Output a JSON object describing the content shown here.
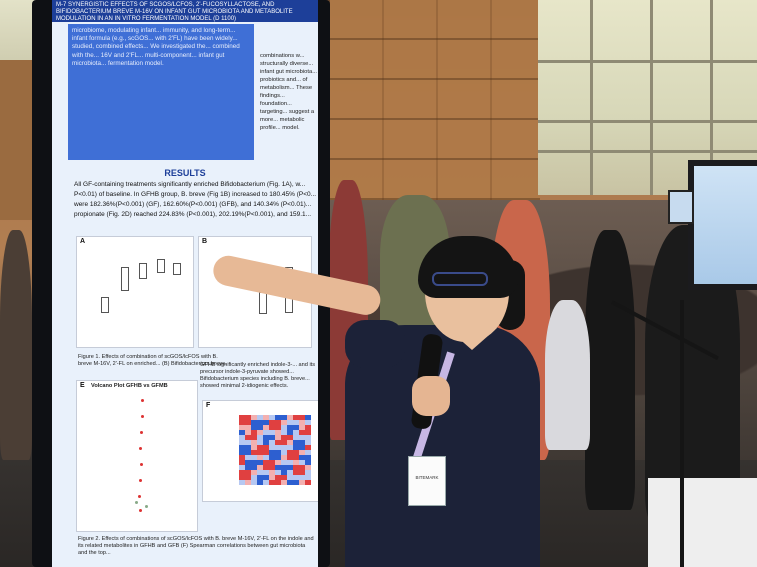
{
  "poster": {
    "header": "M-7 SYNERGISTIC EFFECTS OF SCGOS/LCFOS, 2'-FUCOSYLLACTOSE, AND BIFIDOBACTERIUM BREVE M-16V ON INFANT GUT MICROBIOTA AND METABOLITE MODULATION IN AN IN VITRO FERMENTATION MODEL",
    "code": "(D 1100)",
    "abstract_text": "microbiome, modulating infant... immunity, and long-term... infant formula (e.g., scGOS... with 2'FL) have been widely... studied, combined effects... We investigated the... combined with the... 16V and 2'FL... multi-component... infant gut microbiota... fermentation model.",
    "aside_text": "combinations w... structurally diverse... infant gut microbiota... probiotics and... of metabolism... These findings... foundation... targeting... suggest a more... metabolic profile... model.",
    "results_title": "RESULTS",
    "results_text": "All GF-containing treatments significantly enriched Bifidobacterium (Fig. 1A), w... P<0.01) of baseline. In GFHB group, B. breve (Fig 1B) increased to 180.45% (P<0... were 182.36%(P<0.001) (GF), 162.60%(P<0.001) (GFB), and 140.34% (P<0.01)... propionate (Fig. 2D) reached 224.83% (P<0.001), 202.19%(P<0.001), and 159.1...",
    "panel_a_label": "A",
    "panel_b_label": "B",
    "panel_e_label": "E",
    "panel_f_label": "F",
    "fig1_caption": "Figure 1. Effects of combination of scGOS/lcFOS with B. breve M-16V, 2'-FL on enriched... (B) Bifidobacterium breve.",
    "volcano_title": "Volcano Plot GFHB vs GFMB",
    "gfhb_text": "GFHB significantly enriched indole-3-... and its precursor indole-3-pyruvate showed... Bifidobacterium species including B. breve... showed minimal 2-idiogenic effects.",
    "fig2_caption": "Figure 2. Effects of combinations of scGOS/lcFOS with B. breve M-16V, 2'-FL on the indole and its related metabolites in GFHB and GFB (F) Spearman correlations between gut microbiota and the top..."
  },
  "badge_text": "BITEMARK",
  "colors": {
    "poster_header": "#1d3f99",
    "abstract_bg": "#3f6fd6",
    "heatmap_red": "#e04040",
    "heatmap_blue": "#2d5fd0"
  }
}
